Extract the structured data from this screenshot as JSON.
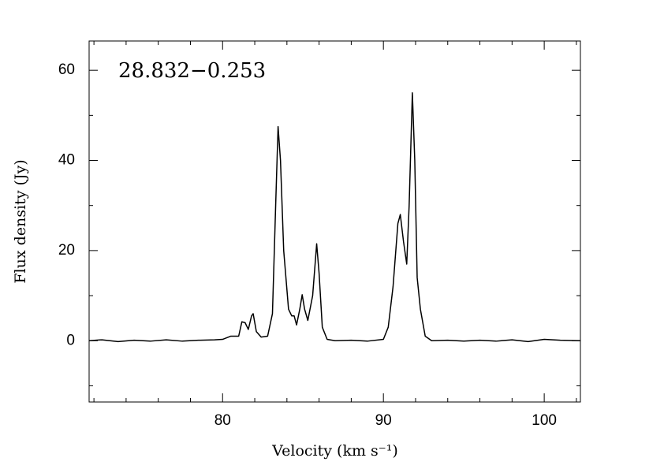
{
  "chart_data": {
    "type": "line",
    "annotation": "28.832−0.253",
    "xlabel": "Velocity (km s⁻¹)",
    "ylabel": "Flux density (Jy)",
    "xlim": [
      71.7,
      102.25
    ],
    "ylim": [
      -13.6,
      66.5
    ],
    "xticks": [
      80,
      90,
      100
    ],
    "yticks": [
      0,
      20,
      40,
      60
    ],
    "xminorticks": [
      72,
      74,
      76,
      78,
      82,
      84,
      86,
      88,
      92,
      94,
      96,
      98,
      102
    ],
    "yminorticks": [
      -10,
      10,
      30,
      50
    ],
    "series": [
      {
        "color": "#000000",
        "x": [
          71.7,
          72.5,
          73.5,
          74.5,
          75.5,
          76.5,
          77.5,
          78.5,
          79.5,
          80,
          80.5,
          81,
          81.2,
          81.4,
          81.6,
          81.8,
          81.9,
          82.1,
          82.4,
          82.8,
          83.1,
          83.3,
          83.45,
          83.6,
          83.8,
          84.1,
          84.3,
          84.45,
          84.6,
          84.8,
          84.95,
          85.1,
          85.3,
          85.6,
          85.85,
          86.0,
          86.2,
          86.5,
          87,
          88,
          89,
          90,
          90.3,
          90.6,
          90.9,
          91.05,
          91.25,
          91.45,
          91.6,
          91.8,
          91.95,
          92.1,
          92.3,
          92.6,
          93,
          94,
          95,
          96,
          97,
          98,
          99,
          100,
          101,
          102.25
        ],
        "values": [
          0,
          0.2,
          -0.2,
          0.1,
          -0.1,
          0.2,
          -0.1,
          0.1,
          0.2,
          0.3,
          1,
          1,
          4.2,
          4,
          2.5,
          5.5,
          6,
          2,
          0.8,
          1,
          6,
          30,
          47.5,
          40,
          20,
          7,
          5.5,
          5.5,
          3.5,
          7,
          10.2,
          7,
          4.5,
          10,
          21.5,
          15,
          3,
          0.3,
          0,
          0.1,
          -0.1,
          0.3,
          3,
          12,
          26,
          28,
          22,
          17,
          30,
          55,
          40,
          14,
          7,
          1,
          0,
          0.1,
          -0.1,
          0.1,
          -0.1,
          0.2,
          -0.2,
          0.3,
          0.1,
          0
        ]
      }
    ]
  }
}
